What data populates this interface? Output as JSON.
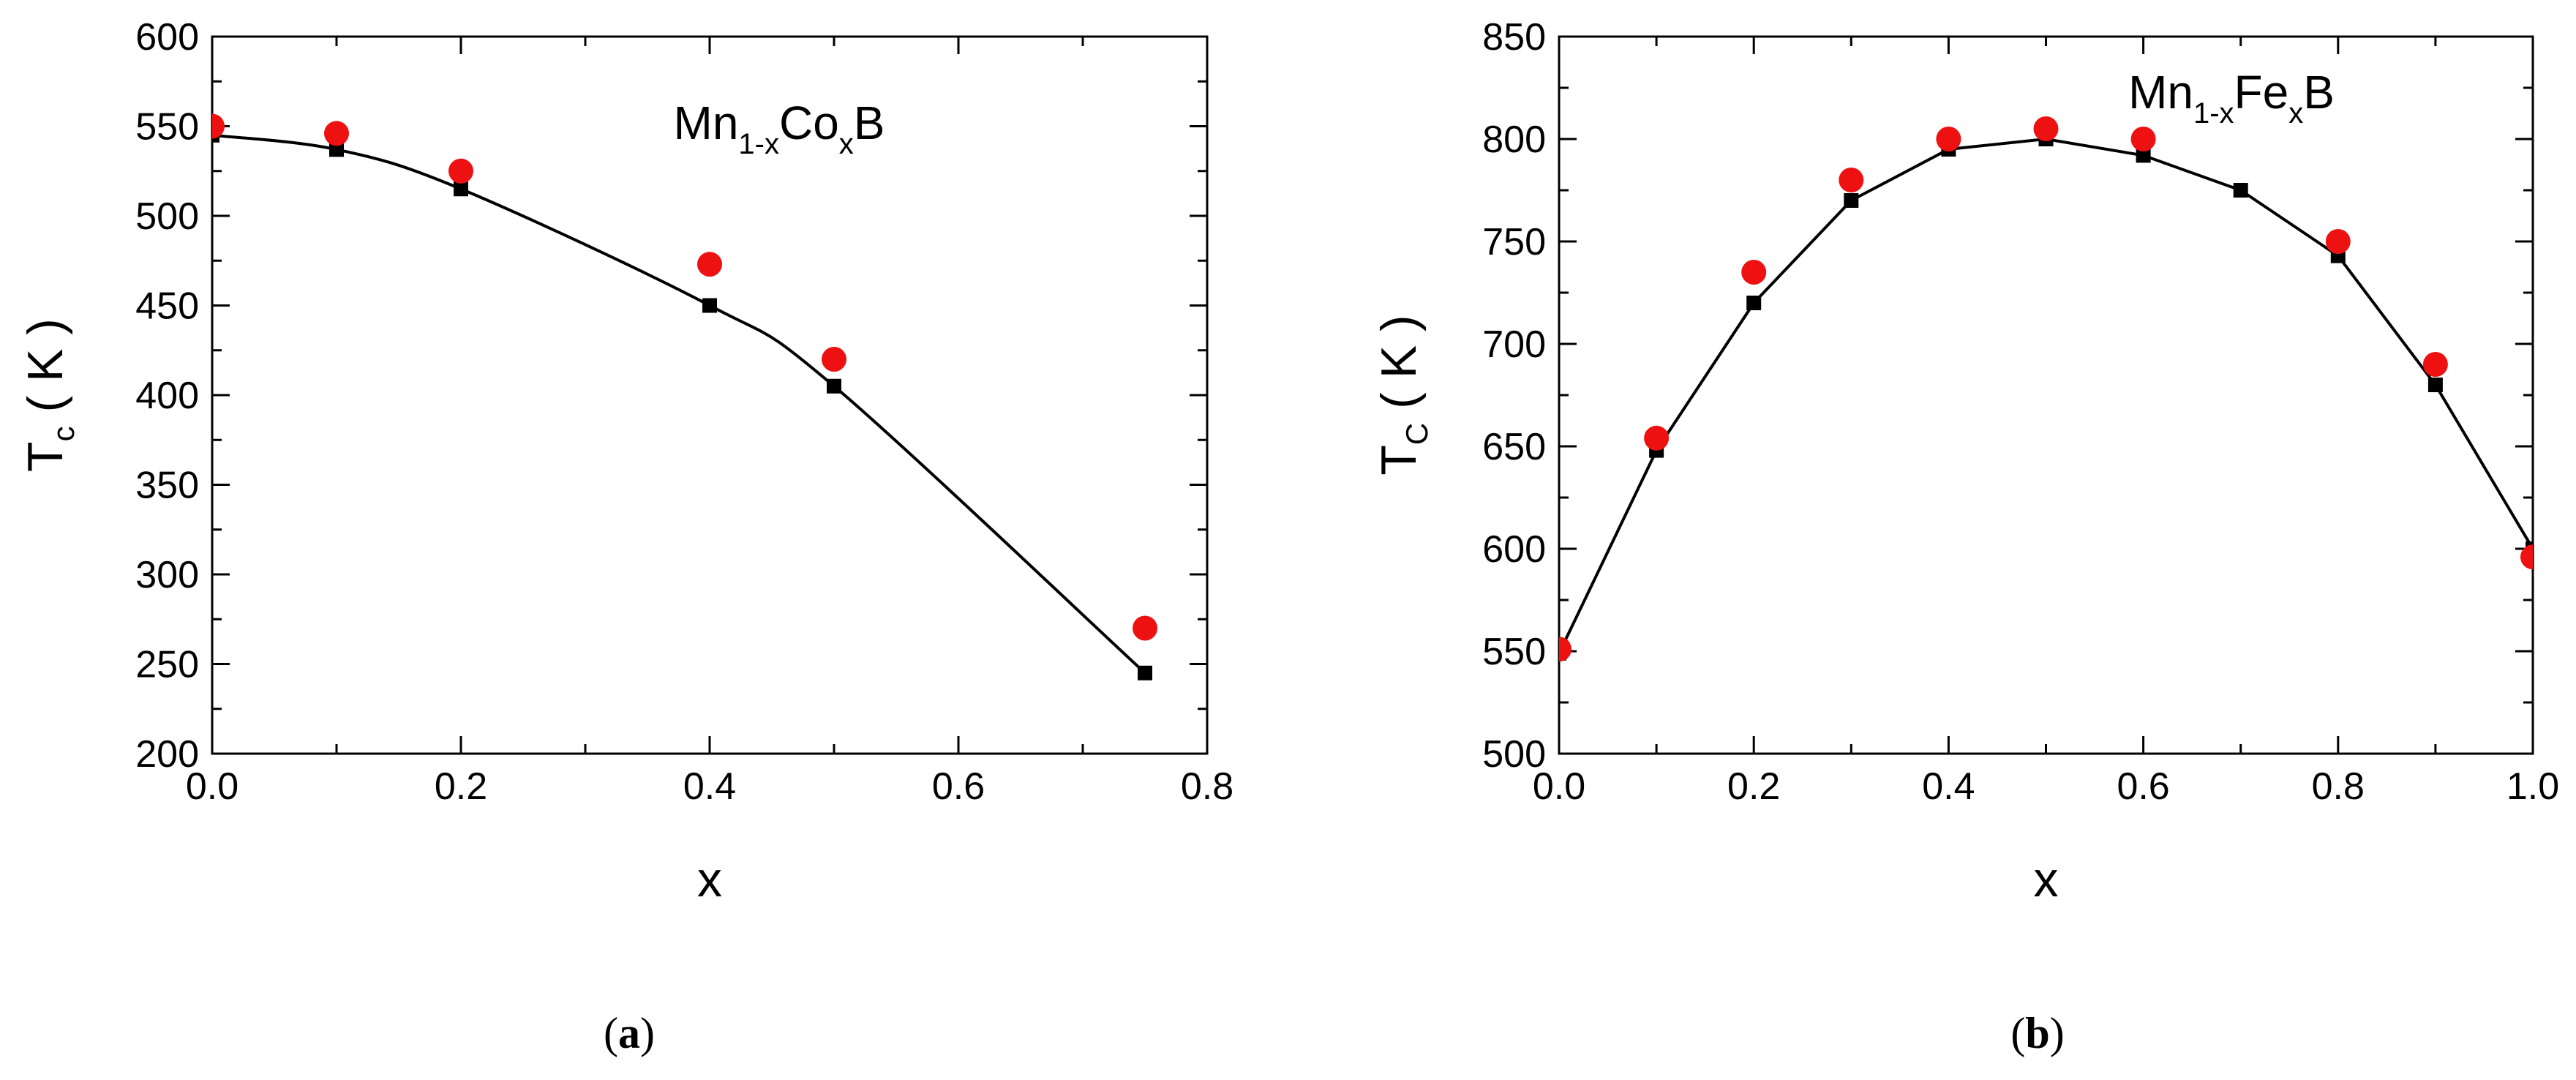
{
  "chart_data": [
    {
      "type": "scatter",
      "panel_label": "a",
      "annotation": {
        "base": "Mn",
        "sub1": "1-x",
        "mid": "Co",
        "sub2": "x",
        "end": "B"
      },
      "xlabel": "x",
      "ylabel": {
        "base": "T",
        "sub": "c",
        "unit": "( K )"
      },
      "xlim": [
        0.0,
        0.8
      ],
      "ylim": [
        200,
        600
      ],
      "xticks": [
        0.0,
        0.2,
        0.4,
        0.6,
        0.8
      ],
      "xtick_labels": [
        "0.0",
        "0.2",
        "0.4",
        "0.6",
        "0.8"
      ],
      "yticks": [
        200,
        250,
        300,
        350,
        400,
        450,
        500,
        550,
        600
      ],
      "ytick_labels": [
        "200",
        "250",
        "300",
        "350",
        "400",
        "450",
        "500",
        "550",
        "600"
      ],
      "grid": false,
      "series": [
        {
          "marker": "square",
          "color": "#000000",
          "line": "smooth",
          "x": [
            0.0,
            0.1,
            0.2,
            0.4,
            0.5,
            0.75
          ],
          "y": [
            545,
            537,
            515,
            450,
            405,
            245
          ]
        },
        {
          "marker": "circle",
          "color": "#ee1111",
          "line": "none",
          "x": [
            0.0,
            0.1,
            0.2,
            0.4,
            0.5,
            0.75
          ],
          "y": [
            550,
            546,
            525,
            473,
            420,
            270
          ]
        }
      ]
    },
    {
      "type": "scatter",
      "panel_label": "b",
      "annotation": {
        "base": "Mn",
        "sub1": "1-x",
        "mid": "Fe",
        "sub2": "x",
        "end": "B"
      },
      "xlabel": "x",
      "ylabel": {
        "base": "T",
        "sub": "C",
        "unit": "( K )"
      },
      "xlim": [
        0.0,
        1.0
      ],
      "ylim": [
        500,
        850
      ],
      "xticks": [
        0.0,
        0.2,
        0.4,
        0.6,
        0.8,
        1.0
      ],
      "xtick_labels": [
        "0.0",
        "0.2",
        "0.4",
        "0.6",
        "0.8",
        "1.0"
      ],
      "yticks": [
        500,
        550,
        600,
        650,
        700,
        750,
        800,
        850
      ],
      "ytick_labels": [
        "500",
        "550",
        "600",
        "650",
        "700",
        "750",
        "800",
        "850"
      ],
      "grid": false,
      "series": [
        {
          "marker": "square",
          "color": "#000000",
          "line": "straight",
          "x": [
            0.0,
            0.1,
            0.2,
            0.3,
            0.4,
            0.5,
            0.6,
            0.7,
            0.8,
            0.9,
            1.0
          ],
          "y": [
            549,
            648,
            720,
            770,
            795,
            800,
            792,
            775,
            743,
            680,
            600
          ]
        },
        {
          "marker": "circle",
          "color": "#ee1111",
          "line": "none",
          "x": [
            0.0,
            0.1,
            0.2,
            0.3,
            0.4,
            0.5,
            0.6,
            0.7,
            0.8,
            0.9,
            1.0
          ],
          "y": [
            551,
            654,
            735,
            780,
            800,
            805,
            800,
            null,
            750,
            690,
            596
          ]
        }
      ]
    }
  ]
}
